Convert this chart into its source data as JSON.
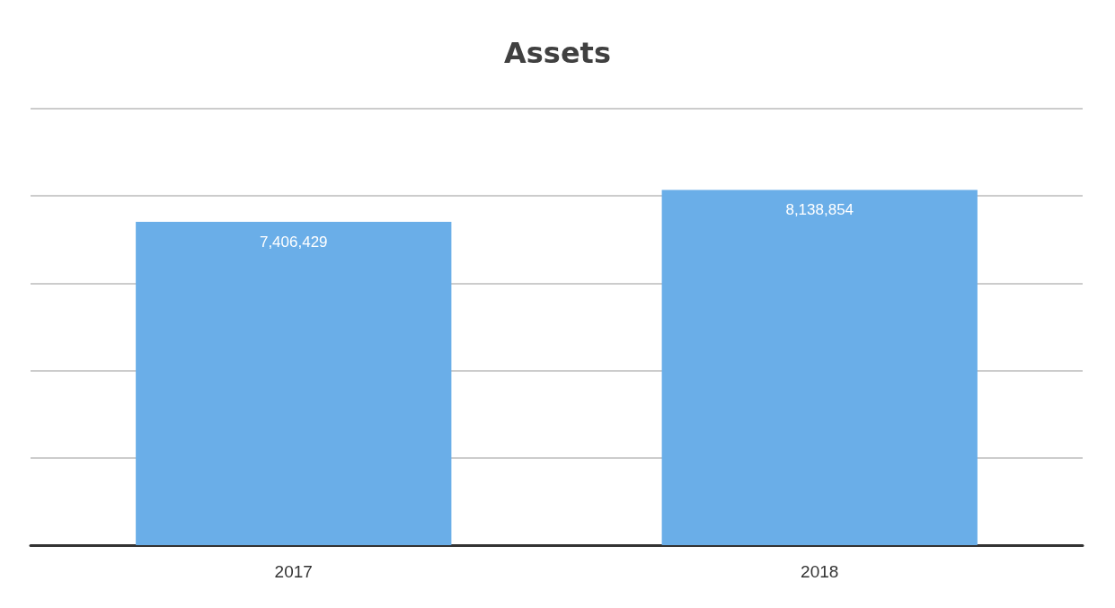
{
  "chart_data": {
    "type": "bar",
    "title": "Assets",
    "categories": [
      "2017",
      "2018"
    ],
    "values": [
      7406429,
      8138854
    ],
    "color": "#6aaee8",
    "value_labels": [
      "7,406,429",
      "8,138,854"
    ],
    "tick_labels": "x",
    "grid": "y"
  }
}
